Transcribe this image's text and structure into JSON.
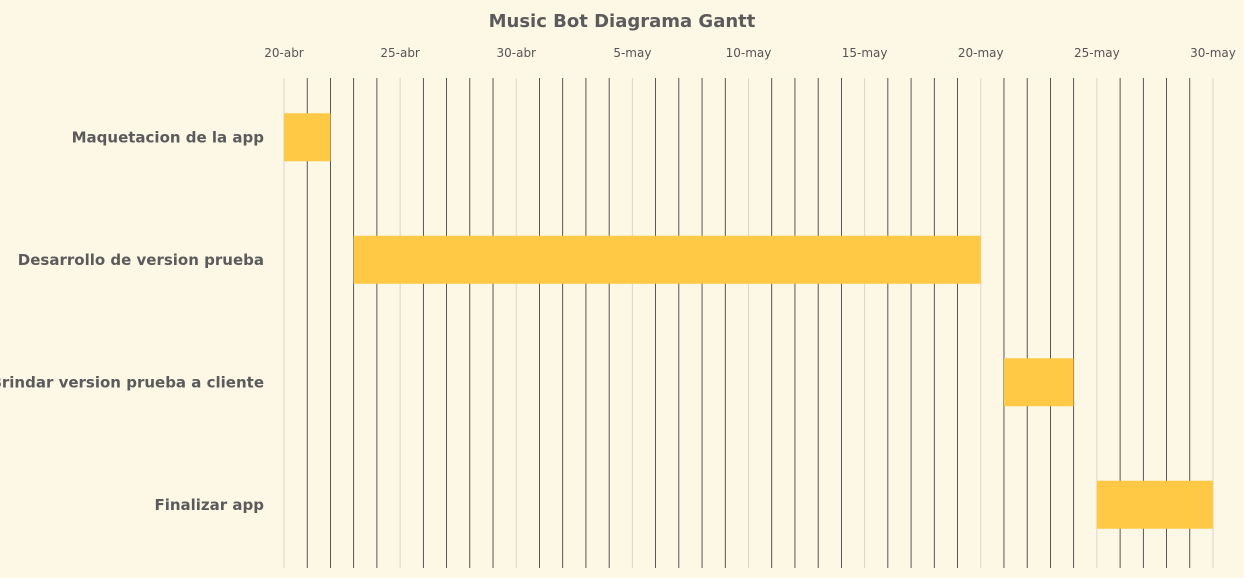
{
  "chart_data": {
    "type": "gantt",
    "title": "Music Bot Diagrama Gantt",
    "x_axis": {
      "start": "2023-04-20",
      "end": "2023-05-30",
      "ticks": [
        {
          "date": "2023-04-20",
          "label": "20-abr"
        },
        {
          "date": "2023-04-25",
          "label": "25-abr"
        },
        {
          "date": "2023-04-30",
          "label": "30-abr"
        },
        {
          "date": "2023-05-05",
          "label": "5-may"
        },
        {
          "date": "2023-05-10",
          "label": "10-may"
        },
        {
          "date": "2023-05-15",
          "label": "15-may"
        },
        {
          "date": "2023-05-20",
          "label": "20-may"
        },
        {
          "date": "2023-05-25",
          "label": "25-may"
        },
        {
          "date": "2023-05-30",
          "label": "30-may"
        }
      ],
      "gridlines": "daily"
    },
    "tasks": [
      {
        "name": "Maquetacion de la app",
        "start": "2023-04-20",
        "end": "2023-04-22"
      },
      {
        "name": "Desarrollo de version prueba",
        "start": "2023-04-23",
        "end": "2023-05-20"
      },
      {
        "name": "Brindar version prueba a cliente",
        "start": "2023-05-21",
        "end": "2023-05-24"
      },
      {
        "name": "Finalizar app",
        "start": "2023-05-25",
        "end": "2023-05-30"
      }
    ],
    "colors": {
      "bar": "#ffc845",
      "background": "#fdf7e6",
      "grid_major": "#d9d6cc",
      "grid_minor": "#2f2f2f",
      "text": "#5b5b5b"
    }
  }
}
